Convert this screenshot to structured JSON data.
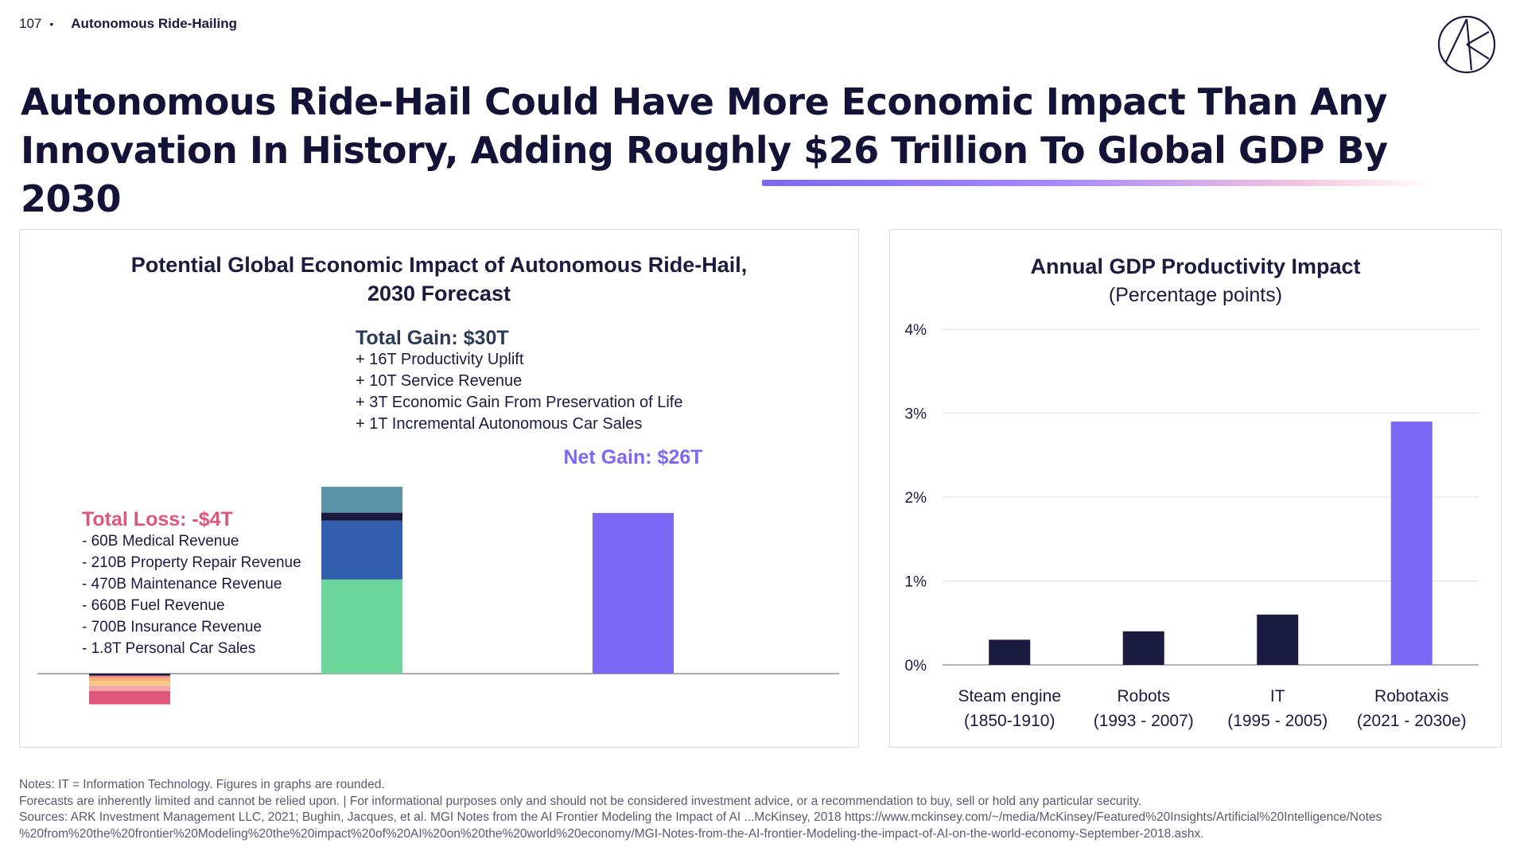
{
  "header": {
    "page_number": "107",
    "section": "Autonomous Ride-Hailing"
  },
  "headline": {
    "line1": "Autonomous Ride-Hail Could Have More Economic Impact Than Any",
    "line2_pre": "Innovation In History, Adding Roughly ",
    "line2_highlight": "$26 Trillion To Global GDP By 2030"
  },
  "colors": {
    "navy": "#1b1a3f",
    "purple": "#7b68f5",
    "loss_red": "#e0557a",
    "teal_gray": "#5b93a8",
    "blue": "#315fae",
    "green": "#6dd69a",
    "orange": "#f7b27a",
    "pink": "#f4a5a8"
  },
  "left_panel": {
    "title_line1": "Potential Global Economic Impact of Autonomous Ride-Hail,",
    "title_line2": "2030 Forecast"
  },
  "right_panel": {
    "title": "Annual GDP Productivity Impact",
    "subtitle": "(Percentage points)"
  },
  "chart_data": [
    {
      "type": "bar",
      "title": "Potential Global Economic Impact of Autonomous Ride-Hail, 2030 Forecast",
      "categories": [
        "Total Loss",
        "Total Gain",
        "Net Gain"
      ],
      "unit": "Trillion USD",
      "loss": {
        "label": "Total Loss: -$4T",
        "total": -4,
        "items": [
          {
            "text": "- 60B Medical Revenue",
            "value": -0.06
          },
          {
            "text": "- 210B Property Repair Revenue",
            "value": -0.21
          },
          {
            "text": "- 470B Maintenance Revenue",
            "value": -0.47
          },
          {
            "text": "- 660B Fuel Revenue",
            "value": -0.66
          },
          {
            "text": "- 700B Insurance Revenue",
            "value": -0.7
          },
          {
            "text": "- 1.8T Personal Car Sales",
            "value": -1.8
          }
        ]
      },
      "gain": {
        "label": "Total Gain: $30T",
        "total": 30,
        "items": [
          {
            "text": "+ 16T Productivity Uplift",
            "value": 16
          },
          {
            "text": "+ 10T Service Revenue",
            "value": 10
          },
          {
            "text": "+ 3T Economic Gain From Preservation of Life",
            "value": 3
          },
          {
            "text": "+ 1T Incremental Autonomous Car Sales",
            "value": 1
          }
        ]
      },
      "net": {
        "label": "Net Gain: $26T",
        "value": 26
      }
    },
    {
      "type": "bar",
      "title": "Annual GDP Productivity Impact",
      "subtitle": "(Percentage points)",
      "categories": [
        [
          "Steam engine",
          "(1850-1910)"
        ],
        [
          "Robots",
          "(1993 - 2007)"
        ],
        [
          "IT",
          "(1995 - 2005)"
        ],
        [
          "Robotaxis",
          "(2021 - 2030e)"
        ]
      ],
      "values": [
        0.3,
        0.4,
        0.6,
        2.9
      ],
      "highlight_index": 3,
      "ylim": [
        0,
        4
      ],
      "yticks": [
        "0%",
        "1%",
        "2%",
        "3%",
        "4%"
      ],
      "grid": true
    }
  ],
  "notes": {
    "line1": "Notes: IT = Information Technology. Figures in graphs are rounded.",
    "line2": "Forecasts are inherently limited and cannot be relied upon. | For informational purposes only and should not be considered investment advice, or a recommendation to buy, sell or hold any particular security.",
    "line3": "Sources: ARK Investment Management LLC, 2021; Bughin, Jacques, et al. MGI Notes from the AI Frontier Modeling the Impact of AI ...McKinsey, 2018 https://www.mckinsey.com/~/media/McKinsey/Featured%20Insights/Artificial%20Intelligence/Notes",
    "line4": "%20from%20the%20frontier%20Modeling%20the%20impact%20of%20AI%20on%20the%20world%20economy/MGI-Notes-from-the-AI-frontier-Modeling-the-impact-of-AI-on-the-world-economy-September-2018.ashx."
  }
}
